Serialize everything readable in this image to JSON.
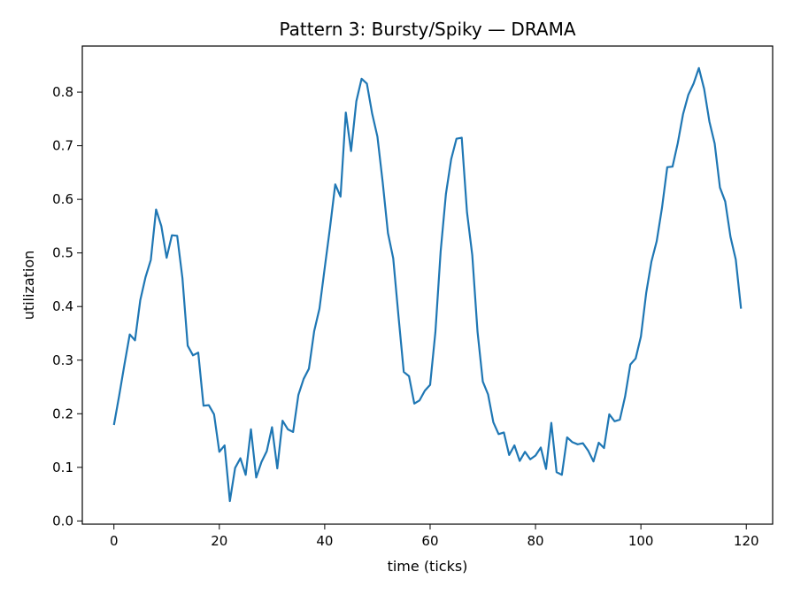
{
  "chart_data": {
    "type": "line",
    "title": "Pattern 3: Bursty/Spiky — DRAMA",
    "xlabel": "time (ticks)",
    "ylabel": "utilization",
    "xlim": [
      -6,
      125
    ],
    "ylim": [
      -0.006,
      0.886
    ],
    "x_ticks": [
      0,
      20,
      40,
      60,
      80,
      100,
      120
    ],
    "y_ticks": [
      0.0,
      0.1,
      0.2,
      0.3,
      0.4,
      0.5,
      0.6,
      0.7,
      0.8
    ],
    "x_tick_labels": [
      "0",
      "20",
      "40",
      "60",
      "80",
      "100",
      "120"
    ],
    "y_tick_labels": [
      "0.0",
      "0.1",
      "0.2",
      "0.3",
      "0.4",
      "0.5",
      "0.6",
      "0.7",
      "0.8"
    ],
    "grid": false,
    "legend": "none",
    "colors": {
      "series": "#1f77b4"
    },
    "series": [
      {
        "x": [
          0,
          1,
          2,
          3,
          4,
          5,
          6,
          7,
          8,
          9,
          10,
          11,
          12,
          13,
          14,
          15,
          16,
          17,
          18,
          19,
          20,
          21,
          22,
          23,
          24,
          25,
          26,
          27,
          28,
          29,
          30,
          31,
          32,
          33,
          34,
          35,
          36,
          37,
          38,
          39,
          40,
          41,
          42,
          43,
          44,
          45,
          46,
          47,
          48,
          49,
          50,
          51,
          52,
          53,
          54,
          55,
          56,
          57,
          58,
          59,
          60,
          61,
          62,
          63,
          64,
          65,
          66,
          67,
          68,
          69,
          70,
          71,
          72,
          73,
          74,
          75,
          76,
          77,
          78,
          79,
          80,
          81,
          82,
          83,
          84,
          85,
          86,
          87,
          88,
          89,
          90,
          91,
          92,
          93,
          94,
          95,
          96,
          97,
          98,
          99,
          100,
          101,
          102,
          103,
          104,
          105,
          106,
          107,
          108,
          109,
          110,
          111,
          112,
          113,
          114,
          115,
          116,
          117,
          118,
          119
        ],
        "values": [
          0.179,
          0.234,
          0.292,
          0.348,
          0.337,
          0.412,
          0.455,
          0.487,
          0.581,
          0.55,
          0.491,
          0.533,
          0.532,
          0.453,
          0.327,
          0.309,
          0.314,
          0.215,
          0.216,
          0.199,
          0.129,
          0.141,
          0.037,
          0.099,
          0.117,
          0.086,
          0.171,
          0.081,
          0.11,
          0.13,
          0.175,
          0.098,
          0.187,
          0.171,
          0.166,
          0.235,
          0.265,
          0.284,
          0.354,
          0.396,
          0.472,
          0.547,
          0.628,
          0.605,
          0.762,
          0.69,
          0.783,
          0.825,
          0.816,
          0.76,
          0.717,
          0.632,
          0.537,
          0.49,
          0.382,
          0.278,
          0.27,
          0.219,
          0.225,
          0.243,
          0.254,
          0.352,
          0.503,
          0.61,
          0.675,
          0.713,
          0.715,
          0.576,
          0.496,
          0.353,
          0.26,
          0.236,
          0.184,
          0.162,
          0.165,
          0.123,
          0.141,
          0.112,
          0.129,
          0.115,
          0.122,
          0.137,
          0.097,
          0.183,
          0.091,
          0.086,
          0.156,
          0.147,
          0.143,
          0.145,
          0.131,
          0.111,
          0.146,
          0.136,
          0.199,
          0.186,
          0.189,
          0.232,
          0.292,
          0.303,
          0.344,
          0.425,
          0.484,
          0.522,
          0.584,
          0.66,
          0.661,
          0.705,
          0.759,
          0.795,
          0.816,
          0.845,
          0.806,
          0.745,
          0.704,
          0.622,
          0.596,
          0.53,
          0.488,
          0.396
        ]
      }
    ]
  }
}
